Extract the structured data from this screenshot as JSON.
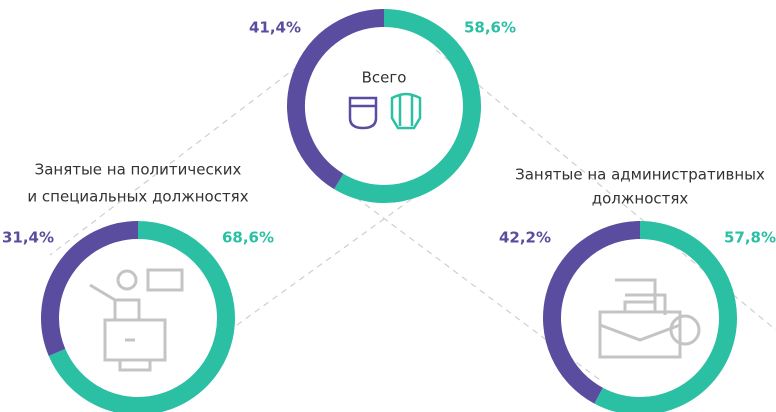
{
  "chart_data": [
    {
      "type": "pie",
      "title": [
        "Всего"
      ],
      "values": [
        58.6,
        41.4
      ],
      "value_labels": [
        "58,6%",
        "41,4%"
      ],
      "colors": [
        "#2bbfa4",
        "#5a4d9f"
      ]
    },
    {
      "type": "pie",
      "title": [
        "Занятые на политических",
        "и специальных должностях"
      ],
      "values": [
        68.6,
        31.4
      ],
      "value_labels": [
        "68,6%",
        "31,4%"
      ],
      "colors": [
        "#2bbfa4",
        "#5a4d9f"
      ]
    },
    {
      "type": "pie",
      "title": [
        "Занятые на административных",
        "должностях"
      ],
      "values": [
        57.8,
        42.2
      ],
      "value_labels": [
        "57,8%",
        "42,2%"
      ],
      "colors": [
        "#2bbfa4",
        "#5a4d9f"
      ]
    }
  ]
}
